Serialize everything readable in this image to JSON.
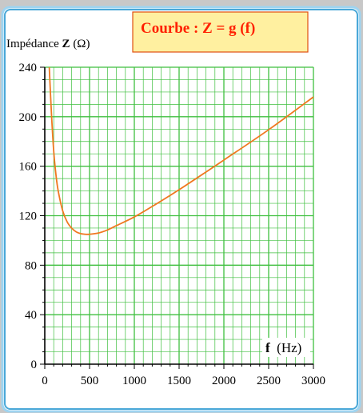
{
  "chart_data": {
    "type": "line",
    "title": "Courbe : Z = g (f)",
    "ylabel_prefix": "Impédance ",
    "ylabel_symbol": "Z",
    "ylabel_unit": " (Ω)",
    "xlabel_symbol": "f",
    "xlabel_unit": "  (Hz)",
    "xlim": [
      0,
      3000
    ],
    "ylim": [
      0,
      240
    ],
    "xticks": [
      0,
      500,
      1000,
      1500,
      2000,
      2500,
      3000
    ],
    "yticks": [
      0,
      40,
      80,
      120,
      160,
      200,
      240
    ],
    "grid": true,
    "series": [
      {
        "color": "#f07820",
        "x": [
          50,
          75,
          100,
          125,
          150,
          200,
          250,
          300,
          350,
          400,
          450,
          500,
          600,
          700,
          800,
          1000,
          1200,
          1500,
          2000,
          2500,
          3000
        ],
        "y": [
          240,
          202,
          172,
          153,
          140,
          124,
          115,
          110,
          107,
          105.5,
          105,
          105,
          106,
          108.5,
          112,
          119,
          127.5,
          141,
          165,
          189.5,
          216
        ]
      }
    ]
  },
  "colors": {
    "background": "#c8c8c8",
    "panel": "#ffffff",
    "panel_border": "#4aa8d8",
    "grid": "#3fbf3f",
    "title_box": "#fff0a0",
    "title_border": "#e05010",
    "title_text": "#ff2000"
  }
}
